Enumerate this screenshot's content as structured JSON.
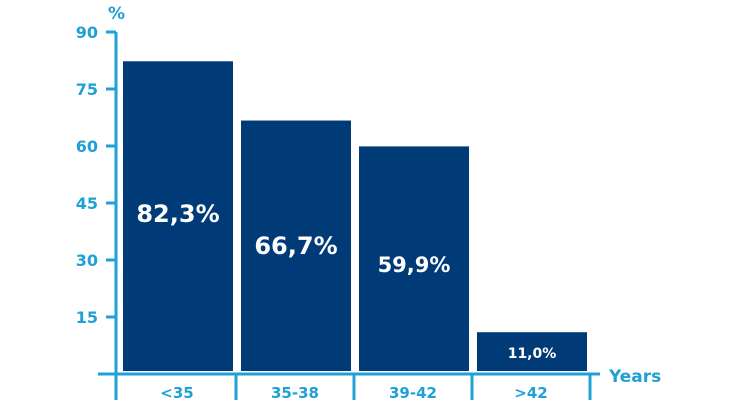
{
  "chart_data": {
    "type": "bar",
    "categories": [
      "<35",
      "35-38",
      "39-42",
      ">42"
    ],
    "values": [
      82.3,
      66.7,
      59.9,
      11.0
    ],
    "data_labels": [
      "82,3%",
      "66,7%",
      "59,9%",
      "11,0%"
    ],
    "title": "",
    "xlabel": "Years",
    "ylabel": "%",
    "ylim": [
      0,
      90
    ],
    "yticks": [
      15,
      30,
      45,
      60,
      75,
      90
    ],
    "grid": false,
    "legend": "none"
  },
  "colors": {
    "bar": "#003b78",
    "axis": "#1fa0d6",
    "label": "#ffffff"
  }
}
